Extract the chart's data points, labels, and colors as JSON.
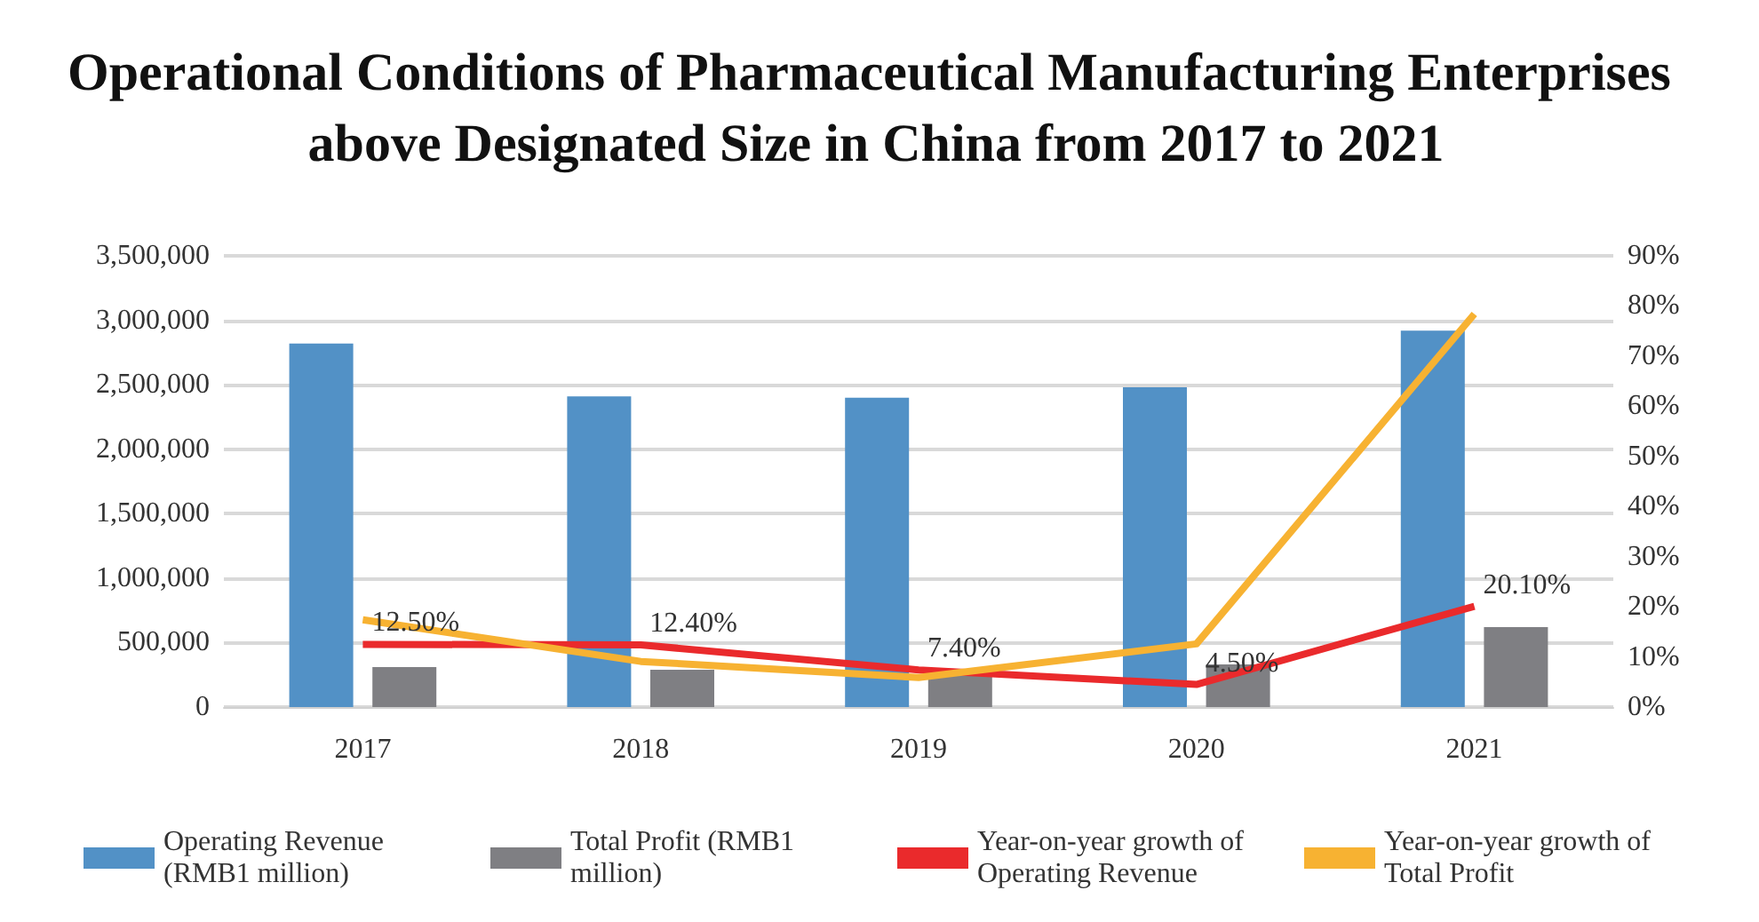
{
  "chart_data": {
    "type": "bar",
    "title": "Operational Conditions of Pharmaceutical Manufacturing Enterprises above Designated Size in China from 2017 to 2021",
    "categories": [
      "2017",
      "2018",
      "2019",
      "2020",
      "2021"
    ],
    "series": [
      {
        "name": "Operating Revenue (RMB1 million)",
        "color": "#5291c6",
        "values": [
          2820000,
          2410000,
          2400000,
          2480000,
          2920000
        ]
      },
      {
        "name": "Total Profit (RMB1 million)",
        "color": "#7f7f83",
        "values": [
          310000,
          290000,
          250000,
          330000,
          620000
        ]
      },
      {
        "name": "Year-on-year growth of Operating Revenue",
        "type": "line",
        "axis": "y2",
        "color": "#ea2a2c",
        "values": [
          12.5,
          12.4,
          7.4,
          4.5,
          20.1
        ],
        "value_labels": [
          "12.50%",
          "12.40%",
          "7.40%",
          "4.50%",
          "20.10%"
        ]
      },
      {
        "name": "Year-on-year growth of Total Profit",
        "type": "line",
        "axis": "y2",
        "color": "#f7b232",
        "values": [
          17.4,
          9.1,
          5.9,
          12.6,
          78.4
        ]
      }
    ],
    "ylim": [
      0,
      3500000
    ],
    "yticks": [
      0,
      {
        "value": 500000,
        "label": "500,000"
      },
      {
        "value": 1000000,
        "label": "1,000,000"
      },
      {
        "value": 1500000,
        "label": "1,500,000"
      },
      {
        "value": 2000000,
        "label": "2,000,000"
      },
      {
        "value": 2500000,
        "label": "2,500,000"
      },
      {
        "value": 3000000,
        "label": "3,000,000"
      },
      {
        "value": 3500000,
        "label": "3,500,000"
      }
    ],
    "y2lim": [
      0,
      90
    ],
    "y2ticks": [
      {
        "value": 0,
        "label": "0%"
      },
      {
        "value": 10,
        "label": "10%"
      },
      {
        "value": 20,
        "label": "20%"
      },
      {
        "value": 30,
        "label": "30%"
      },
      {
        "value": 40,
        "label": "40%"
      },
      {
        "value": 50,
        "label": "50%"
      },
      {
        "value": 60,
        "label": "60%"
      },
      {
        "value": 70,
        "label": "70%"
      },
      {
        "value": 80,
        "label": "80%"
      },
      {
        "value": 90,
        "label": "90%"
      }
    ],
    "grid": "y",
    "legend": "bottom",
    "marker": "none"
  }
}
